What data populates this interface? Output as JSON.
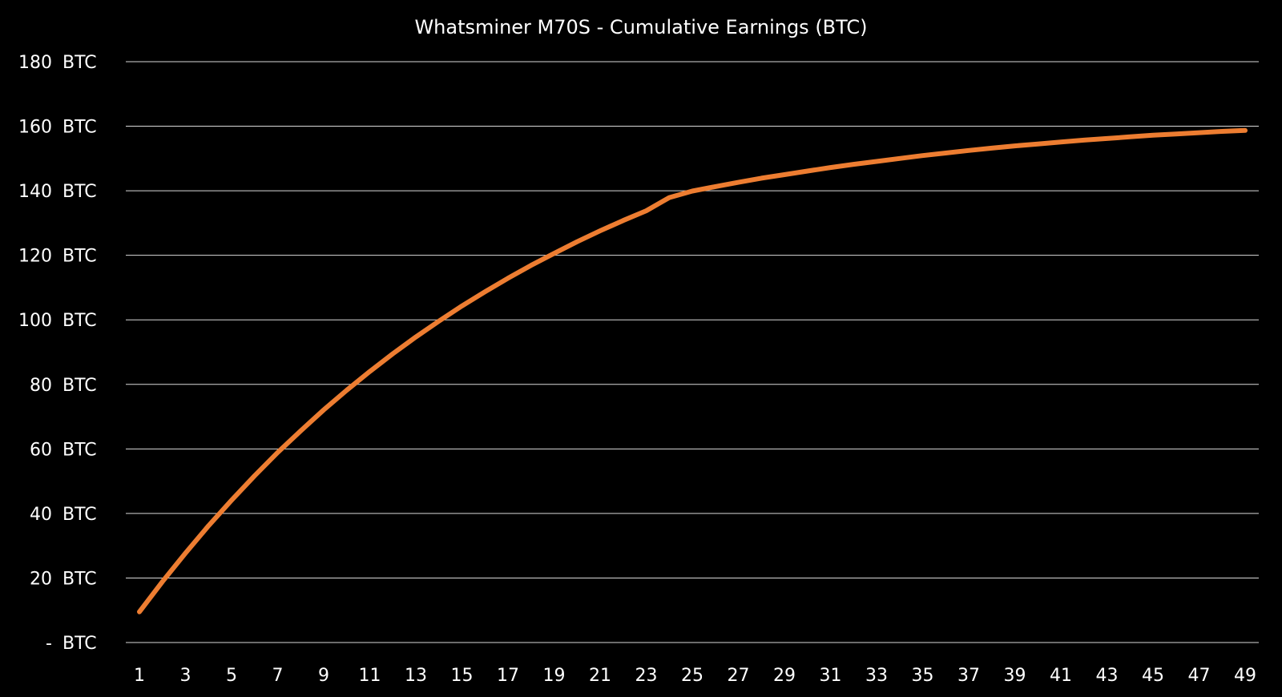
{
  "chart_data": {
    "type": "line",
    "title": "Whatsminer M70S - Cumulative Earnings (BTC)",
    "xlabel": "",
    "ylabel": "",
    "ylim": [
      0,
      180
    ],
    "y_ticks": [
      0,
      20,
      40,
      60,
      80,
      100,
      120,
      140,
      160,
      180
    ],
    "y_tick_labels": [
      "- BTC",
      "20 BTC",
      "40 BTC",
      "60 BTC",
      "80 BTC",
      "100 BTC",
      "120 BTC",
      "140 BTC",
      "160 BTC",
      "180 BTC"
    ],
    "x_range": [
      1,
      49
    ],
    "x_tick_labels": [
      "1",
      "3",
      "5",
      "7",
      "9",
      "11",
      "13",
      "15",
      "17",
      "19",
      "21",
      "23",
      "25",
      "27",
      "29",
      "31",
      "33",
      "35",
      "37",
      "39",
      "41",
      "43",
      "45",
      "47",
      "49"
    ],
    "grid": "horizontal",
    "colors": {
      "background": "#000000",
      "grid": "#d9d9d9",
      "text": "#ffffff",
      "line": "#ed7d31"
    },
    "series": [
      {
        "x": [
          1,
          2,
          3,
          4,
          5,
          6,
          7,
          8,
          9,
          10,
          11,
          12,
          13,
          14,
          15,
          16,
          17,
          18,
          19,
          20,
          21,
          22,
          23,
          24,
          25,
          26,
          27,
          28,
          29,
          30,
          31,
          32,
          33,
          34,
          35,
          36,
          37,
          38,
          39,
          40,
          41,
          42,
          43,
          44,
          45,
          46,
          47,
          48,
          49
        ],
        "values": [
          9.5,
          18.9,
          27.7,
          36.2,
          44.1,
          51.7,
          58.9,
          65.6,
          72.1,
          78.2,
          84.0,
          89.5,
          94.7,
          99.6,
          104.3,
          108.7,
          112.9,
          116.9,
          120.6,
          124.2,
          127.6,
          130.8,
          133.8,
          137.9,
          139.9,
          141.3,
          142.6,
          143.9,
          145.0,
          146.1,
          147.2,
          148.2,
          149.1,
          150.0,
          150.9,
          151.7,
          152.5,
          153.2,
          153.9,
          154.5,
          155.1,
          155.7,
          156.2,
          156.7,
          157.2,
          157.6,
          158.0,
          158.4,
          158.7
        ]
      }
    ]
  }
}
